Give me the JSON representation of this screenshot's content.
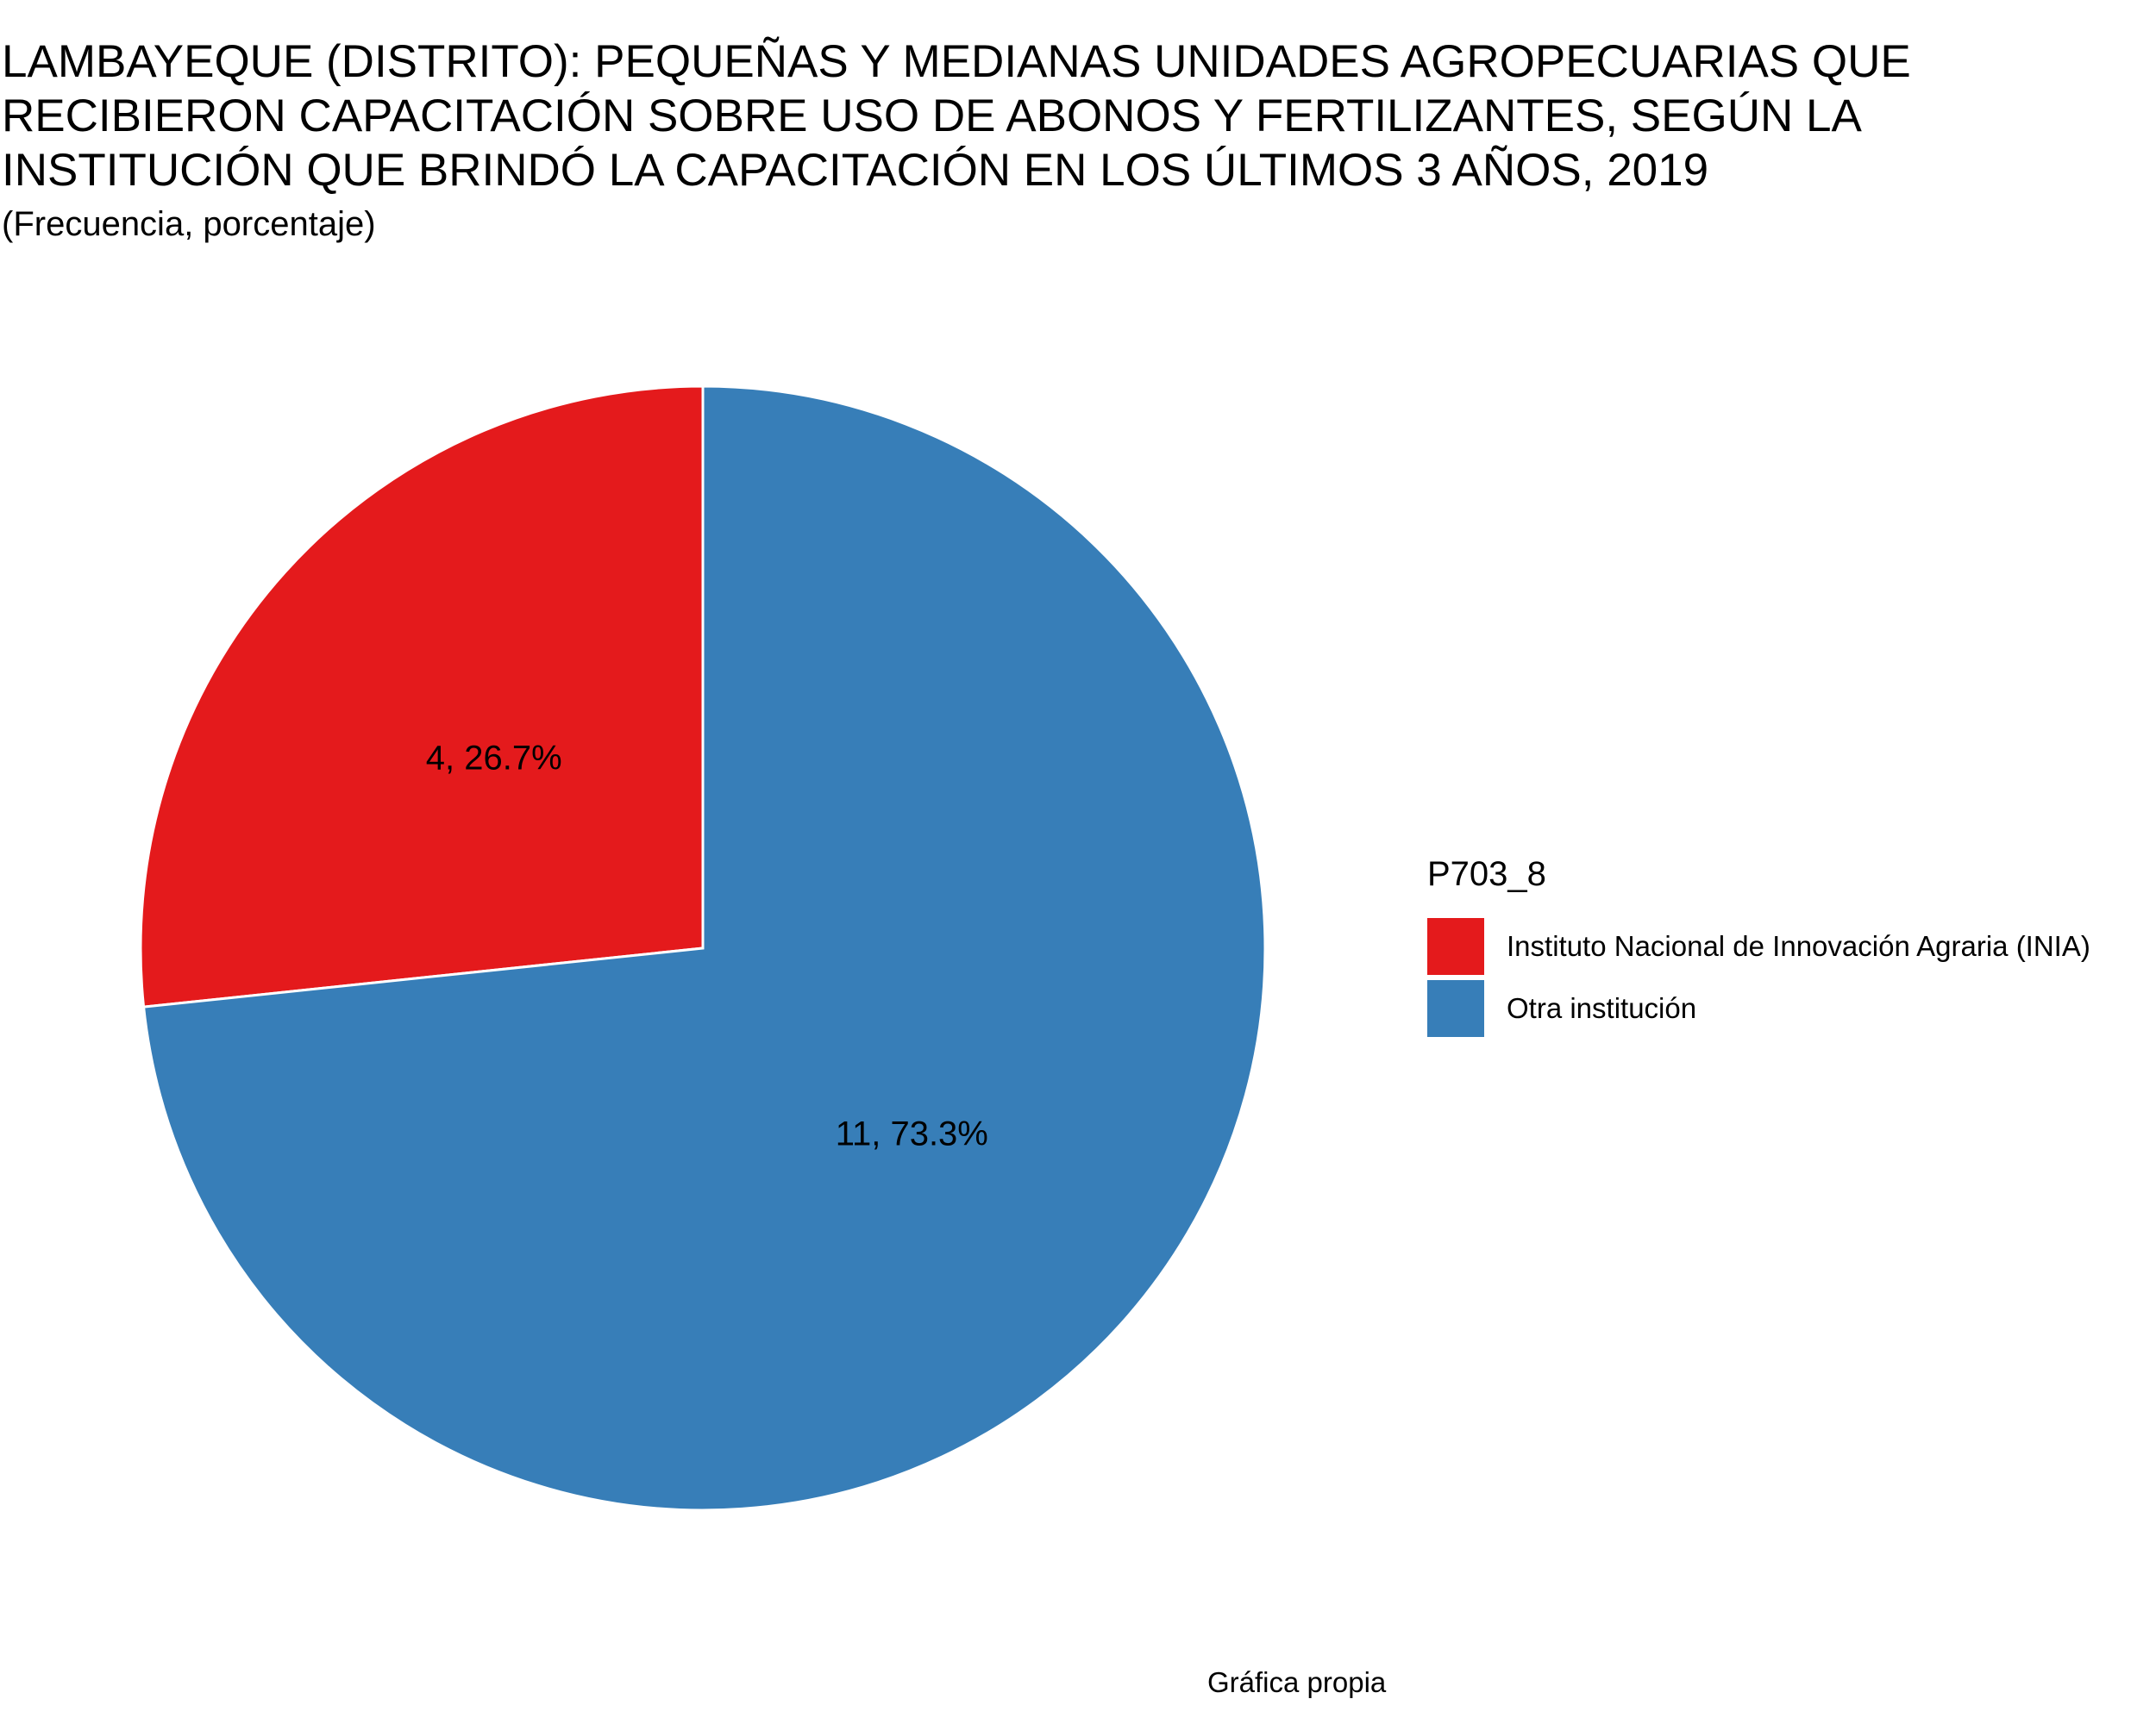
{
  "chart_data": {
    "type": "pie",
    "title": "LAMBAYEQUE (DISTRITO): PEQUEÑAS Y MEDIANAS UNIDADES AGROPECUARIAS QUE\nRECIBIERON CAPACITACIÓN SOBRE USO DE ABONOS Y FERTILIZANTES, SEGÚN LA\nINSTITUCIÓN QUE BRINDÓ LA CAPACITACIÓN EN LOS ÚLTIMOS 3 AÑOS, 2019",
    "subtitle": "(Frecuencia, porcentaje)",
    "legend_title": "P703_8",
    "legend_position": "right",
    "caption": "Gráfica propia",
    "slices": [
      {
        "name": "Instituto Nacional de Innovación Agraria (INIA)",
        "value": 4,
        "percent": 26.7,
        "label": "4, 26.7%",
        "color": "#E41A1C"
      },
      {
        "name": "Otra institución",
        "value": 11,
        "percent": 73.3,
        "label": "11, 73.3%",
        "color": "#377EB8"
      }
    ]
  }
}
